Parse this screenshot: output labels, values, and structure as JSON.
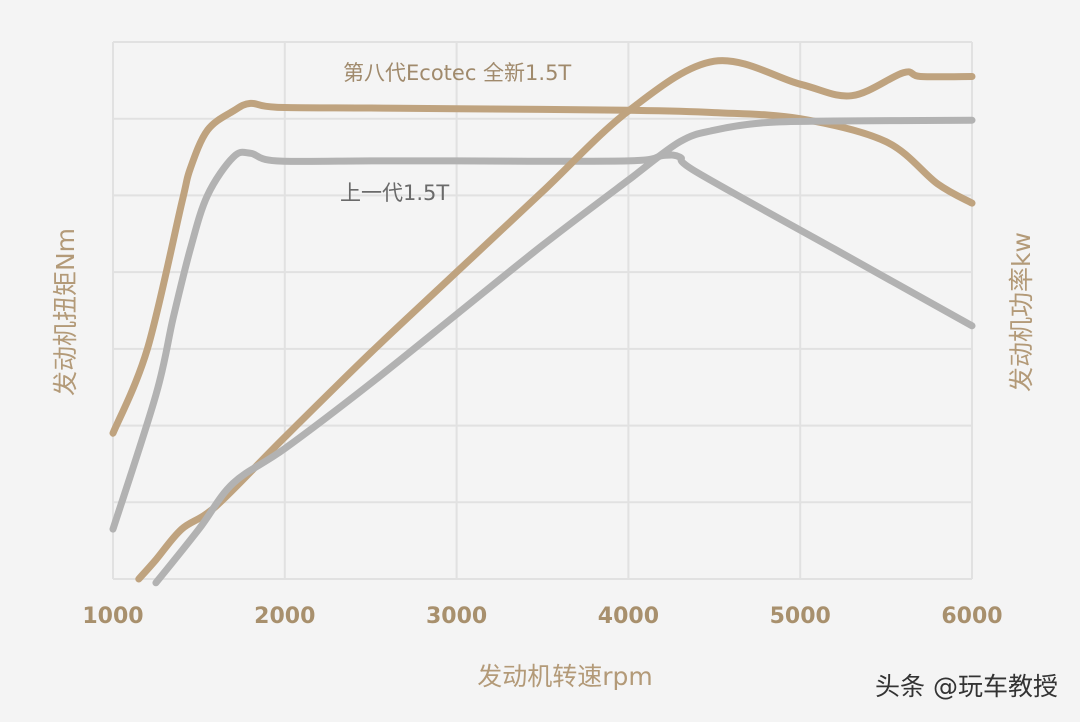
{
  "chart_data": {
    "type": "line",
    "x_ticks": [
      "1000",
      "2000",
      "3000",
      "4000",
      "5000",
      "6000"
    ],
    "xlim": [
      1000,
      6000
    ],
    "xlabel": "发动机转速rpm",
    "ylabel_left": "发动机扭矩Nm",
    "ylabel_right": "发动机功率kw",
    "ylim": [
      0,
      7
    ],
    "grid": true,
    "curve_labels": {
      "new_gen": "第八代Ecotec 全新1.5T",
      "prev_gen": "上一代1.5T"
    },
    "colors": {
      "new_gen": "#bfa37f",
      "prev_gen": "#b2b2b2",
      "grid": "#e1e1e1",
      "background": "#f4f4f4"
    },
    "series": [
      {
        "kind": "torque",
        "generation": "new_gen",
        "x": [
          1000,
          1200,
          1400,
          1450,
          1550,
          1700,
          1800,
          1950,
          2500,
          3000,
          4000,
          4500,
          5000,
          5500,
          5800,
          6000
        ],
        "y": [
          1.9,
          3.0,
          4.9,
          5.35,
          5.85,
          6.1,
          6.2,
          6.15,
          6.14,
          6.13,
          6.11,
          6.08,
          6.0,
          5.7,
          5.15,
          4.9
        ]
      },
      {
        "kind": "torque",
        "generation": "prev_gen",
        "x": [
          1000,
          1250,
          1350,
          1450,
          1550,
          1700,
          1800,
          1950,
          2500,
          3000,
          4000,
          4200,
          4300,
          4400,
          5200,
          6000
        ],
        "y": [
          0.65,
          2.4,
          3.4,
          4.3,
          5.0,
          5.5,
          5.55,
          5.45,
          5.45,
          5.45,
          5.45,
          5.52,
          5.5,
          5.3,
          4.3,
          3.3
        ]
      },
      {
        "kind": "power",
        "generation": "new_gen",
        "x": [
          1150,
          1250,
          1400,
          1600,
          2000,
          2500,
          3000,
          3500,
          4000,
          4500,
          5000,
          5300,
          5600,
          5700,
          6000
        ],
        "y": [
          0.0,
          0.25,
          0.65,
          0.95,
          1.85,
          2.95,
          4.0,
          5.05,
          6.1,
          6.75,
          6.45,
          6.3,
          6.6,
          6.55,
          6.55
        ]
      },
      {
        "kind": "power",
        "generation": "prev_gen",
        "x": [
          1250,
          1500,
          1700,
          2000,
          2500,
          3000,
          3500,
          4000,
          4300,
          4500,
          4800,
          5200,
          6000
        ],
        "y": [
          -0.05,
          0.65,
          1.25,
          1.7,
          2.55,
          3.45,
          4.35,
          5.2,
          5.7,
          5.85,
          5.95,
          5.97,
          5.98
        ]
      }
    ]
  },
  "watermark": "头条 @玩车教授"
}
